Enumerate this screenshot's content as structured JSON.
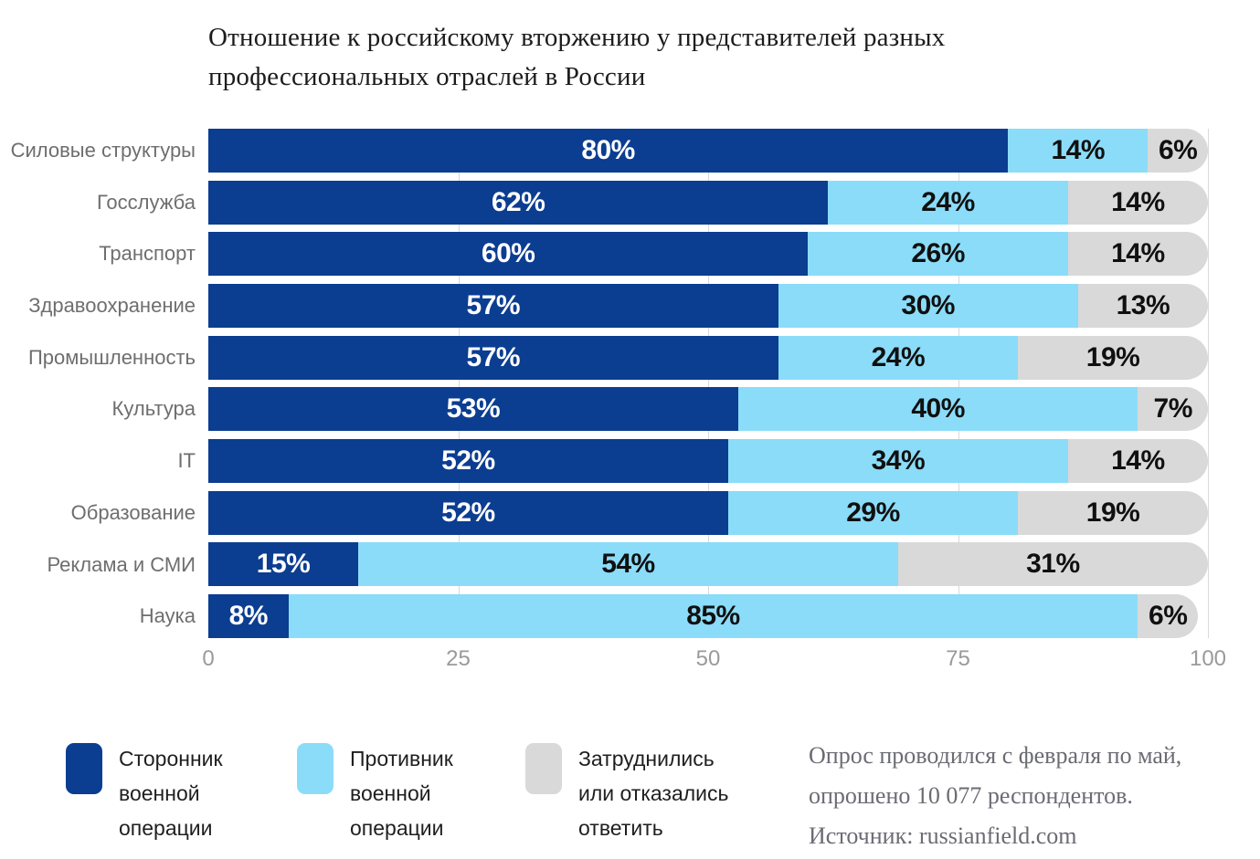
{
  "title": "Отношение к российскому вторжению у представителей разных профессиональных отраслей в России",
  "chart_data": {
    "type": "bar",
    "stacked": true,
    "orientation": "horizontal",
    "categories": [
      "Силовые структуры",
      "Госслужба",
      "Транспорт",
      "Здравоохранение",
      "Промышленность",
      "Культура",
      "IT",
      "Образование",
      "Реклама и СМИ",
      "Наука"
    ],
    "series": [
      {
        "name": "Сторонник военной операции",
        "color": "#0b3d91",
        "label_color": "#ffffff",
        "values": [
          80,
          62,
          60,
          57,
          57,
          53,
          52,
          52,
          15,
          8
        ]
      },
      {
        "name": "Противник военной операции",
        "color": "#8bdcf8",
        "label_color": "#101010",
        "values": [
          14,
          24,
          26,
          30,
          24,
          40,
          34,
          29,
          54,
          85
        ]
      },
      {
        "name": "Затруднились или отказались ответить",
        "color": "#d9d9d9",
        "label_color": "#101010",
        "values": [
          6,
          14,
          14,
          13,
          19,
          7,
          14,
          19,
          31,
          6
        ]
      }
    ],
    "value_suffix": "%",
    "x_ticks": [
      0,
      25,
      50,
      75,
      100
    ],
    "xlim": [
      0,
      100
    ],
    "grid": "vertical",
    "legend_position": "bottom"
  },
  "footnote": {
    "line1": "Опрос проводился с февраля по май,",
    "line2": "опрошено 10 077 респондентов.",
    "line3": "Источник: russianfield.com"
  }
}
